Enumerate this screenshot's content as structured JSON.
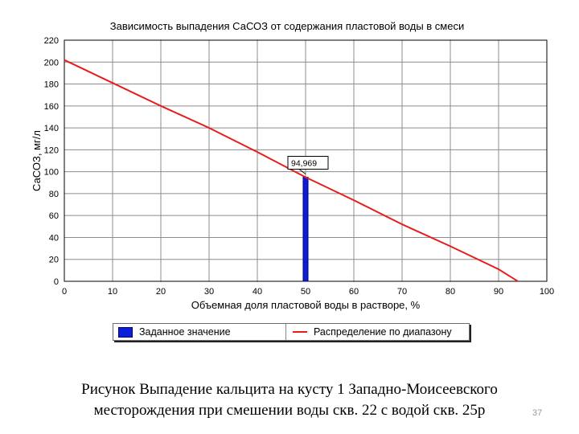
{
  "chart_data": {
    "type": "line",
    "title": "Зависимость выпадения СаСОЗ от содержания пластовой воды в смеси",
    "xlabel": "Объемная доля пластовой воды в растворе, %",
    "ylabel": "СаСОЗ, мг/л",
    "xlim": [
      0,
      100
    ],
    "ylim": [
      0,
      220
    ],
    "x_ticks": [
      "0",
      "10",
      "20",
      "30",
      "40",
      "50",
      "60",
      "70",
      "80",
      "90",
      "100"
    ],
    "y_ticks": [
      "0",
      "20",
      "40",
      "60",
      "80",
      "100",
      "120",
      "140",
      "160",
      "180",
      "200",
      "220"
    ],
    "grid": true,
    "legend_position": "bottom",
    "series": [
      {
        "name": "Распределение по диапазону",
        "type": "line",
        "color": "#e81c1c",
        "x": [
          0,
          10,
          20,
          30,
          40,
          50,
          60,
          70,
          80,
          90,
          94
        ],
        "y": [
          202,
          181,
          160,
          140,
          118,
          95,
          74,
          52,
          32,
          11,
          0
        ]
      },
      {
        "name": "Заданное значение",
        "type": "bar",
        "color": "#0a1fd6",
        "x": [
          50
        ],
        "y": [
          94.969
        ]
      }
    ],
    "annotation": {
      "x": 50,
      "y": 94.969,
      "text": "94,969"
    }
  },
  "caption": {
    "line1": "Рисунок   Выпадение кальцита на кусту 1 Западно-Моисеевского",
    "line2": "месторождения при смешении воды скв. 22 с водой скв. 25р"
  },
  "page_number": "37"
}
